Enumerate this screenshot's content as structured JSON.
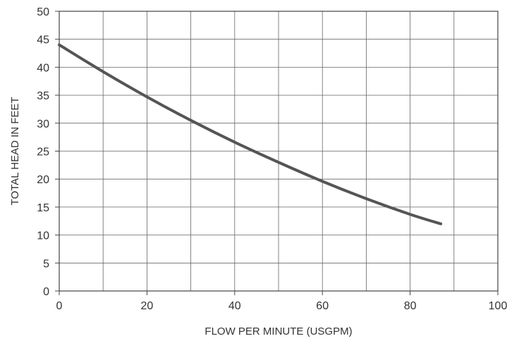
{
  "chart_data": {
    "type": "line",
    "title": "",
    "xlabel": "FLOW PER MINUTE (USGPM)",
    "ylabel": "TOTAL HEAD IN FEET",
    "xlim": [
      0,
      100
    ],
    "ylim": [
      0,
      50
    ],
    "x_major_ticks": [
      0,
      20,
      40,
      60,
      80,
      100
    ],
    "x_grid_step": 10,
    "y_ticks": [
      0,
      5,
      10,
      15,
      20,
      25,
      30,
      35,
      40,
      45,
      50
    ],
    "grid": true,
    "series": [
      {
        "x": [
          0,
          10,
          20,
          30,
          40,
          50,
          60,
          70,
          80,
          87
        ],
        "y": [
          44,
          39.2,
          34.7,
          30.5,
          26.6,
          23,
          19.6,
          16.5,
          13.7,
          12
        ],
        "color": "#555555"
      }
    ]
  }
}
